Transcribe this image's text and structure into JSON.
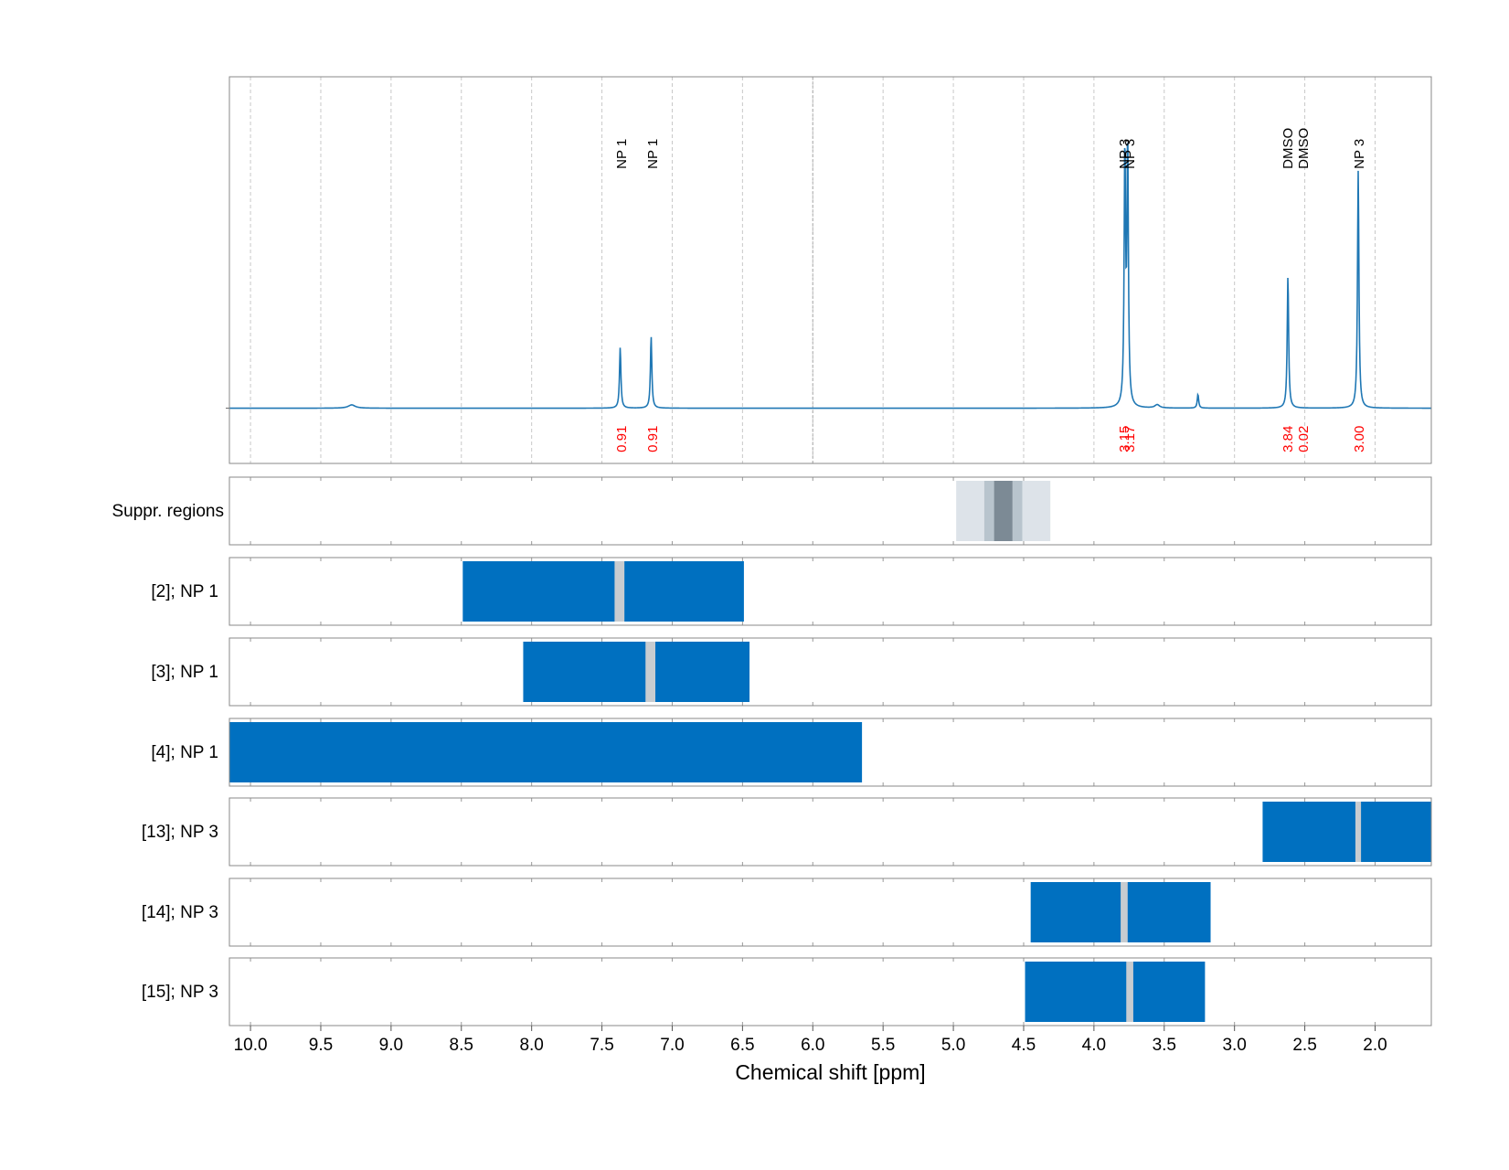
{
  "chart_data": {
    "type": "line",
    "xlabel": "Chemical shift [ppm]",
    "xlim": [
      10.15,
      1.6
    ],
    "x_reversed": true,
    "grid": true,
    "x_ticks": [
      "10.0",
      "9.5",
      "9.0",
      "8.5",
      "8.0",
      "7.5",
      "7.0",
      "6.5",
      "6.0",
      "5.5",
      "5.0",
      "4.5",
      "4.0",
      "3.5",
      "3.0",
      "2.5",
      "2.0"
    ],
    "colors": {
      "spectrum": "#1f77b4",
      "integral_labels": "#ff0000",
      "region_fill": "#0070c0",
      "region_marker": "#c8ccd0",
      "suppr_light": "#dde3e9",
      "suppr_mid": "#b8c4cd",
      "suppr_dark": "#7c8a95"
    },
    "spectrum": {
      "baseline": 0,
      "ylim": [
        -0.2,
        1.2
      ],
      "peaks": [
        {
          "x": 9.28,
          "height": 0.012,
          "width": 0.03
        },
        {
          "x": 7.37,
          "height": 0.22,
          "width": 0.006
        },
        {
          "x": 7.15,
          "height": 0.26,
          "width": 0.006
        },
        {
          "x": 3.78,
          "height": 0.92,
          "width": 0.006
        },
        {
          "x": 3.76,
          "height": 0.94,
          "width": 0.006
        },
        {
          "x": 3.55,
          "height": 0.012,
          "width": 0.02
        },
        {
          "x": 3.26,
          "height": 0.05,
          "width": 0.006
        },
        {
          "x": 2.62,
          "height": 0.48,
          "width": 0.006
        },
        {
          "x": 2.12,
          "height": 0.86,
          "width": 0.006
        }
      ]
    },
    "annotations": [
      {
        "label": "NP 1",
        "x_range": [
          7.32,
          7.4
        ],
        "integral": "0.91",
        "label_y": 0.95
      },
      {
        "label": "NP 1",
        "x_range": [
          7.1,
          7.18
        ],
        "integral": "0.91",
        "label_y": 0.95
      },
      {
        "label": "NP 3",
        "x_range": [
          3.75,
          3.82
        ],
        "integral": "3.15",
        "label_y": 0.95
      },
      {
        "label": "NP 3",
        "x_range": [
          3.72,
          3.77
        ],
        "integral": "3.17",
        "label_y": 0.95
      },
      {
        "label": "DMSO",
        "x_range": [
          2.56,
          2.68
        ],
        "integral": "3.84",
        "label_y": 0.99
      },
      {
        "label": "DMSO",
        "x_range": [
          2.48,
          2.54
        ],
        "integral": "0.02",
        "label_y": 0.99
      },
      {
        "label": "NP 3",
        "x_range": [
          2.09,
          2.14
        ],
        "integral": "3.00",
        "label_y": 0.95
      }
    ],
    "suppr_regions": {
      "label": "Suppr. regions",
      "bands": [
        {
          "range": [
            4.98,
            4.31
          ],
          "shade": "light"
        },
        {
          "range": [
            4.78,
            4.51
          ],
          "shade": "mid"
        },
        {
          "range": [
            4.71,
            4.58
          ],
          "shade": "dark"
        }
      ]
    },
    "tracks": [
      {
        "label": "[2]; NP 1",
        "range": [
          8.49,
          6.49
        ],
        "marker": [
          7.41,
          7.34
        ]
      },
      {
        "label": "[3]; NP 1",
        "range": [
          8.06,
          6.45
        ],
        "marker": [
          7.19,
          7.12
        ]
      },
      {
        "label": "[4]; NP 1",
        "range": [
          10.15,
          5.65
        ],
        "marker": null
      },
      {
        "label": "[13]; NP 3",
        "range": [
          2.8,
          1.6
        ],
        "marker": [
          2.14,
          2.1
        ]
      },
      {
        "label": "[14]; NP 3",
        "range": [
          4.45,
          3.17
        ],
        "marker": [
          3.81,
          3.76
        ]
      },
      {
        "label": "[15]; NP 3",
        "range": [
          4.49,
          3.21
        ],
        "marker": [
          3.77,
          3.72
        ]
      }
    ]
  }
}
